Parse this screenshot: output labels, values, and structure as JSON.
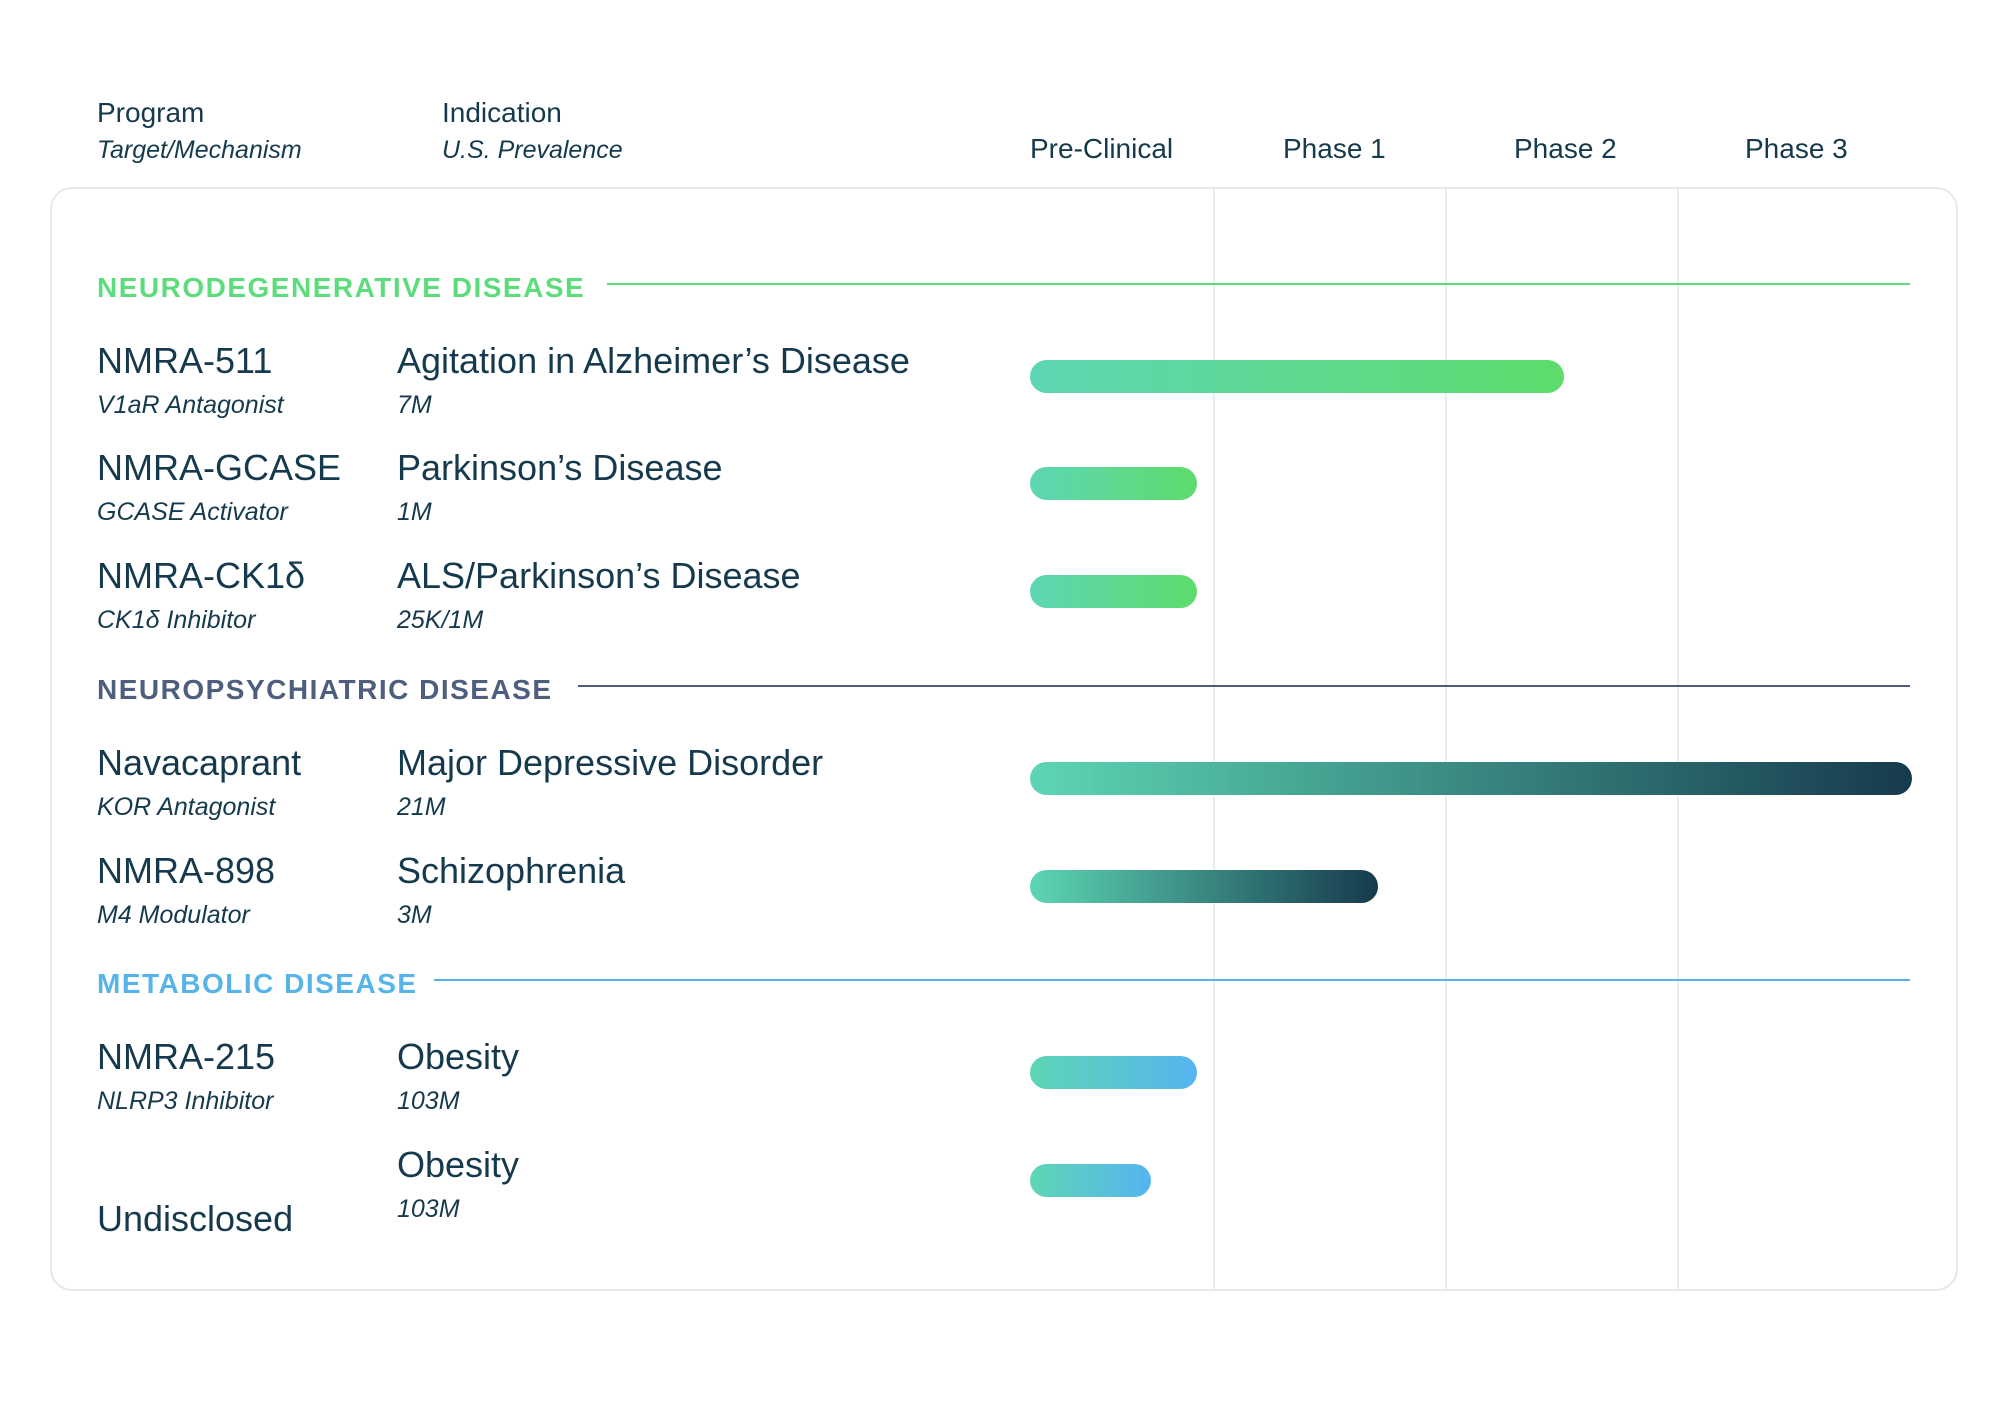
{
  "headers": {
    "program": "Program",
    "program_sub": "Target/Mechanism",
    "indication": "Indication",
    "indication_sub": "U.S. Prevalence"
  },
  "chart_data": {
    "type": "bar",
    "orientation": "horizontal",
    "phases": [
      "Pre-Clinical",
      "Phase 1",
      "Phase 2",
      "Phase 3"
    ],
    "xlim": [
      0,
      4
    ],
    "categories": [
      {
        "title": "NEURODEGENERATIVE DISEASE",
        "color": "#5ddc7c",
        "bar_start_color": "#5dd6b4",
        "bar_end_color": "#5ddc6c",
        "programs": [
          {
            "name": "NMRA-511",
            "mechanism": "V1aR Antagonist",
            "indication": "Agitation in Alzheimer’s Disease",
            "prevalence": "7M",
            "progress": 2.3
          },
          {
            "name": "NMRA-GCASE",
            "mechanism": "GCASE Activator",
            "indication": "Parkinson’s Disease",
            "prevalence": "1M",
            "progress": 0.72
          },
          {
            "name": "NMRA-CK1δ",
            "mechanism": "CK1δ Inhibitor",
            "indication": "ALS/Parkinson’s Disease",
            "prevalence": "25K/1M",
            "progress": 0.72
          }
        ]
      },
      {
        "title": "NEUROPSYCHIATRIC DISEASE",
        "color": "#4e5e7e",
        "bar_start_color": "#5dd6b4",
        "bar_end_color": "#163a4d",
        "programs": [
          {
            "name": "Navacaprant",
            "mechanism": "KOR Antagonist",
            "indication": "Major Depressive Disorder",
            "prevalence": "21M",
            "progress": 3.8
          },
          {
            "name": "NMRA-898",
            "mechanism": "M4 Modulator",
            "indication": "Schizophrenia",
            "prevalence": "3M",
            "progress": 1.5
          }
        ]
      },
      {
        "title": "METABOLIC DISEASE",
        "color": "#56b4e9",
        "bar_start_color": "#5dd6b4",
        "bar_end_color": "#56b4f0",
        "programs": [
          {
            "name": "NMRA-215",
            "mechanism": "NLRP3 Inhibitor",
            "indication": "Obesity",
            "prevalence": "103M",
            "progress": 0.72
          },
          {
            "name": "Undisclosed",
            "mechanism": "",
            "indication": "Obesity",
            "prevalence": "103M",
            "progress": 0.52
          }
        ]
      }
    ]
  }
}
